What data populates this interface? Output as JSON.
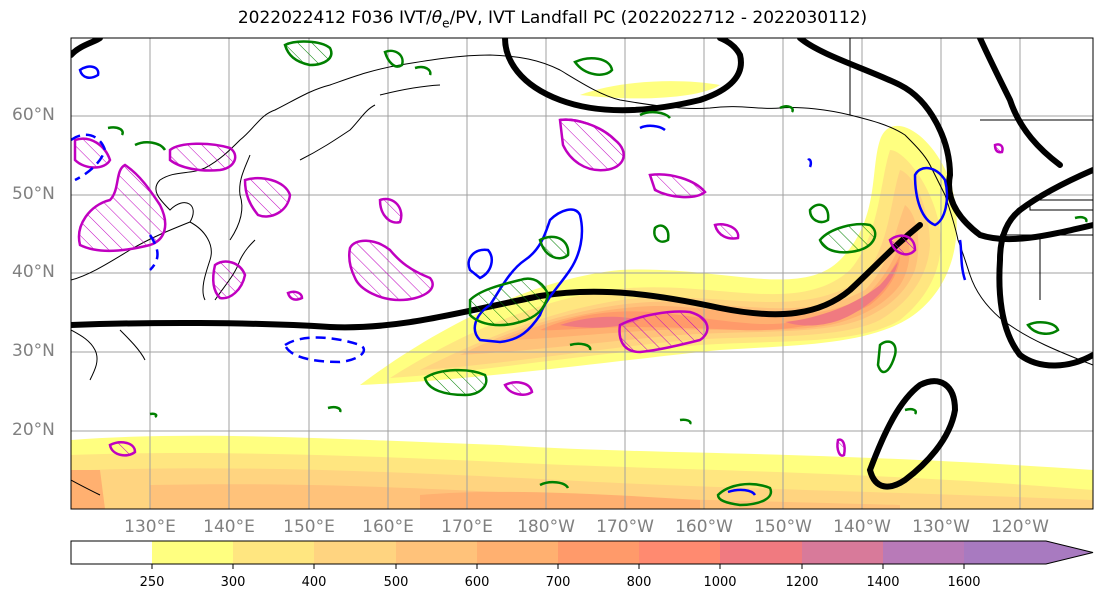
{
  "title_text": "2022022412 F036 IVT/",
  "title_theta": "θ",
  "title_sub": "e",
  "title_rest": "/PV, IVT Landfall PC (2022022712 - 2022030112)",
  "lat_labels": [
    "60°N",
    "50°N",
    "40°N",
    "30°N",
    "20°N"
  ],
  "lon_labels": [
    "130°E",
    "140°E",
    "150°E",
    "160°E",
    "170°E",
    "180°W",
    "170°W",
    "160°W",
    "150°W",
    "140°W",
    "130°W",
    "120°W"
  ],
  "colorbar": {
    "levels": [
      "250",
      "300",
      "400",
      "500",
      "600",
      "700",
      "800",
      "1000",
      "1200",
      "1400",
      "1600"
    ],
    "colors": [
      "#ffffff",
      "#ffff80",
      "#ffe680",
      "#ffd480",
      "#ffc27a",
      "#ffb070",
      "#ff9a6a",
      "#ff8a70",
      "#f07a80",
      "#d87a9a",
      "#b87ab8",
      "#a87ac0"
    ]
  },
  "colors": {
    "pv": "#ff00ff",
    "theta_e": "#008000",
    "ivt_anom": "#0000ff",
    "contour": "#000000",
    "grid": "#a0a0a0"
  }
}
